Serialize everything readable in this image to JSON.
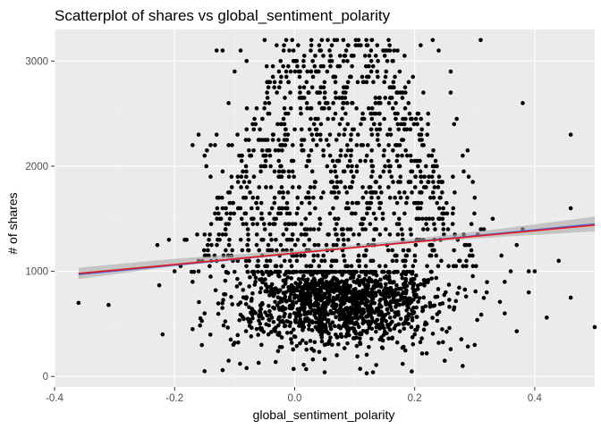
{
  "chart_data": {
    "type": "scatter",
    "title": "Scatterplot of shares vs global_sentiment_polarity",
    "xlabel": "global_sentiment_polarity",
    "ylabel": "# of shares",
    "xlim": [
      -0.4,
      0.5
    ],
    "ylim": [
      -100,
      3300
    ],
    "x_ticks": [
      -0.4,
      -0.2,
      0.0,
      0.2,
      0.4
    ],
    "x_tick_labels": [
      "-0.4",
      "-0.2",
      "0.0",
      "0.2",
      "0.4"
    ],
    "y_ticks": [
      0,
      1000,
      2000,
      3000
    ],
    "y_tick_labels": [
      "0",
      "1000",
      "2000",
      "3000"
    ],
    "grid": true,
    "background": "#ebebeb",
    "point_color": "#000000",
    "series": [
      {
        "points": [
          [
            -0.36,
            700
          ],
          [
            -0.31,
            680
          ],
          [
            -0.22,
            400
          ],
          [
            -0.2,
            1000
          ],
          [
            -0.19,
            1050
          ],
          [
            -0.18,
            1300
          ],
          [
            -0.17,
            900
          ],
          [
            -0.16,
            1100
          ],
          [
            -0.15,
            1350
          ],
          [
            -0.14,
            950
          ],
          [
            -0.13,
            1100
          ],
          [
            -0.13,
            3100
          ],
          [
            -0.12,
            3100
          ],
          [
            -0.12,
            1950
          ],
          [
            -0.11,
            2200
          ],
          [
            -0.13,
            2300
          ],
          [
            -0.14,
            2200
          ],
          [
            -0.16,
            2300
          ],
          [
            -0.17,
            2200
          ],
          [
            -0.15,
            2100
          ],
          [
            -0.14,
            1900
          ],
          [
            -0.12,
            1600
          ],
          [
            -0.1,
            2900
          ],
          [
            -0.09,
            3100
          ],
          [
            -0.08,
            3000
          ],
          [
            -0.07,
            2400
          ],
          [
            -0.11,
            2600
          ],
          [
            -0.08,
            2350
          ],
          [
            -0.16,
            1000
          ],
          [
            -0.05,
            3200
          ],
          [
            -0.04,
            2000
          ],
          [
            -0.03,
            3150
          ],
          [
            -0.11,
            150
          ],
          [
            -0.15,
            50
          ],
          [
            -0.15,
            600
          ],
          [
            -0.17,
            450
          ],
          [
            -0.12,
            60
          ],
          [
            -0.08,
            80
          ],
          [
            -0.06,
            130
          ],
          [
            -0.1,
            320
          ],
          [
            0.2,
            400
          ],
          [
            0.18,
            120
          ],
          [
            0.22,
            220
          ],
          [
            0.25,
            150
          ],
          [
            0.28,
            100
          ],
          [
            0.31,
            3200
          ],
          [
            0.33,
            1500
          ],
          [
            0.35,
            900
          ],
          [
            0.36,
            1000
          ],
          [
            0.37,
            1250
          ],
          [
            0.38,
            1400
          ],
          [
            0.39,
            1000
          ],
          [
            0.4,
            1000
          ],
          [
            0.39,
            800
          ],
          [
            0.37,
            430
          ],
          [
            0.35,
            600
          ],
          [
            0.32,
            800
          ],
          [
            0.3,
            300
          ],
          [
            0.38,
            2600
          ],
          [
            0.42,
            560
          ],
          [
            0.44,
            1100
          ],
          [
            0.46,
            2300
          ],
          [
            0.46,
            1600
          ],
          [
            0.46,
            750
          ],
          [
            0.5,
            470
          ],
          [
            0.26,
            2900
          ],
          [
            0.26,
            2700
          ],
          [
            0.27,
            2450
          ],
          [
            0.28,
            2100
          ],
          [
            0.29,
            1900
          ],
          [
            0.3,
            1700
          ],
          [
            0.24,
            3100
          ],
          [
            0.23,
            3200
          ],
          [
            0.21,
            3150
          ],
          [
            0.19,
            2800
          ],
          [
            0.22,
            500
          ],
          [
            0.24,
            320
          ],
          [
            0.26,
            260
          ],
          [
            0.12,
            30
          ],
          [
            0.05,
            40
          ]
        ]
      }
    ],
    "trend_lines": [
      {
        "name": "smooth",
        "color": "#4a62d9",
        "x": [
          -0.36,
          0.5
        ],
        "y": [
          970,
          1450
        ]
      },
      {
        "name": "lm",
        "color": "#e41a1c",
        "x": [
          -0.36,
          0.5
        ],
        "y": [
          980,
          1440
        ]
      }
    ],
    "confidence_band": {
      "color": "#aaaaaa",
      "x": [
        -0.36,
        -0.2,
        0.0,
        0.1,
        0.2,
        0.35,
        0.5
      ],
      "lower": [
        925,
        1050,
        1160,
        1220,
        1270,
        1330,
        1380
      ],
      "upper": [
        1035,
        1120,
        1200,
        1250,
        1310,
        1410,
        1520
      ]
    }
  }
}
